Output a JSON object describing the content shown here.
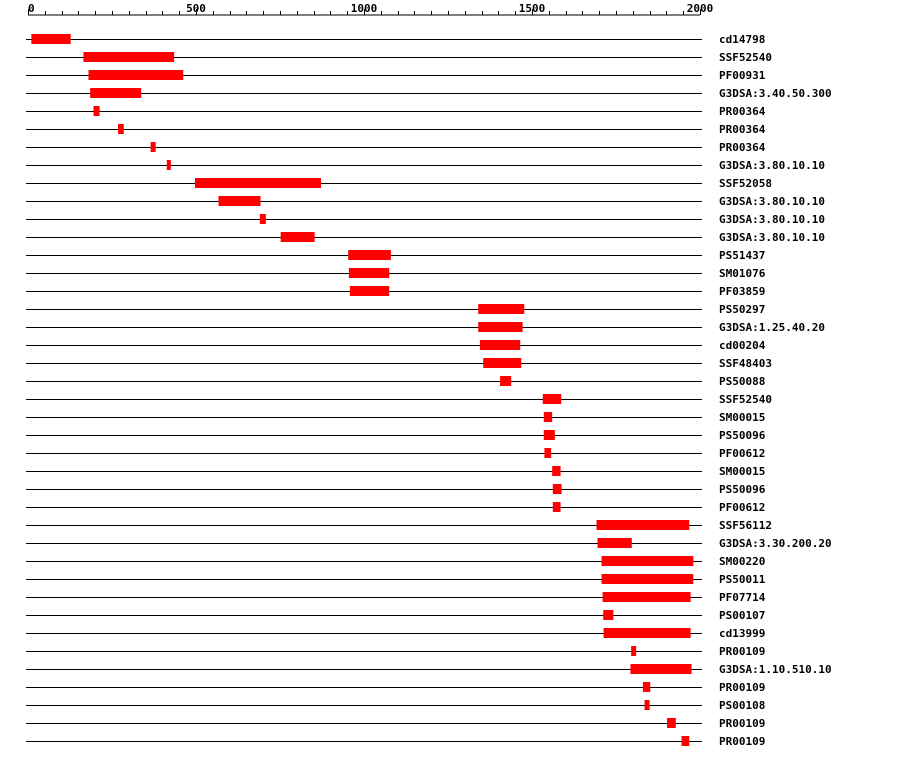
{
  "chart_data": {
    "type": "bar",
    "subtype": "domain-ranges",
    "xlim": [
      0,
      2000
    ],
    "x_ticks": [
      0,
      500,
      1000,
      1500,
      2000
    ],
    "bar_color": "#ff0000",
    "axis_color": "#000000",
    "rows": [
      {
        "label": "cd14798",
        "start": 10,
        "end": 127
      },
      {
        "label": "SSF52540",
        "start": 165,
        "end": 435
      },
      {
        "label": "PF00931",
        "start": 180,
        "end": 462
      },
      {
        "label": "G3DSA:3.40.50.300",
        "start": 185,
        "end": 337
      },
      {
        "label": "PR00364",
        "start": 195,
        "end": 213
      },
      {
        "label": "PR00364",
        "start": 268,
        "end": 285
      },
      {
        "label": "PR00364",
        "start": 365,
        "end": 380
      },
      {
        "label": "G3DSA:3.80.10.10",
        "start": 413,
        "end": 425
      },
      {
        "label": "SSF52058",
        "start": 497,
        "end": 872
      },
      {
        "label": "G3DSA:3.80.10.10",
        "start": 567,
        "end": 692
      },
      {
        "label": "G3DSA:3.80.10.10",
        "start": 690,
        "end": 708
      },
      {
        "label": "G3DSA:3.80.10.10",
        "start": 752,
        "end": 853
      },
      {
        "label": "PS51437",
        "start": 953,
        "end": 1080
      },
      {
        "label": "SM01076",
        "start": 955,
        "end": 1075
      },
      {
        "label": "PF03859",
        "start": 958,
        "end": 1075
      },
      {
        "label": "PS50297",
        "start": 1340,
        "end": 1477
      },
      {
        "label": "G3DSA:1.25.40.20",
        "start": 1340,
        "end": 1472
      },
      {
        "label": "cd00204",
        "start": 1345,
        "end": 1465
      },
      {
        "label": "SSF48403",
        "start": 1355,
        "end": 1468
      },
      {
        "label": "PS50088",
        "start": 1405,
        "end": 1438
      },
      {
        "label": "SSF52540",
        "start": 1532,
        "end": 1587
      },
      {
        "label": "SM00015",
        "start": 1535,
        "end": 1560
      },
      {
        "label": "PS50096",
        "start": 1535,
        "end": 1568
      },
      {
        "label": "PF00612",
        "start": 1537,
        "end": 1557
      },
      {
        "label": "SM00015",
        "start": 1560,
        "end": 1585
      },
      {
        "label": "PS50096",
        "start": 1562,
        "end": 1588
      },
      {
        "label": "PF00612",
        "start": 1562,
        "end": 1585
      },
      {
        "label": "SSF56112",
        "start": 1692,
        "end": 1968
      },
      {
        "label": "G3DSA:3.30.200.20",
        "start": 1695,
        "end": 1797
      },
      {
        "label": "SM00220",
        "start": 1707,
        "end": 1980
      },
      {
        "label": "PS50011",
        "start": 1707,
        "end": 1980
      },
      {
        "label": "PF07714",
        "start": 1710,
        "end": 1972
      },
      {
        "label": "PS00107",
        "start": 1712,
        "end": 1742
      },
      {
        "label": "cd13999",
        "start": 1713,
        "end": 1972
      },
      {
        "label": "PR00109",
        "start": 1795,
        "end": 1810
      },
      {
        "label": "G3DSA:1.10.510.10",
        "start": 1793,
        "end": 1975
      },
      {
        "label": "PR00109",
        "start": 1830,
        "end": 1852
      },
      {
        "label": "PS00108",
        "start": 1835,
        "end": 1850
      },
      {
        "label": "PR00109",
        "start": 1902,
        "end": 1928
      },
      {
        "label": "PR00109",
        "start": 1945,
        "end": 1968
      }
    ]
  }
}
